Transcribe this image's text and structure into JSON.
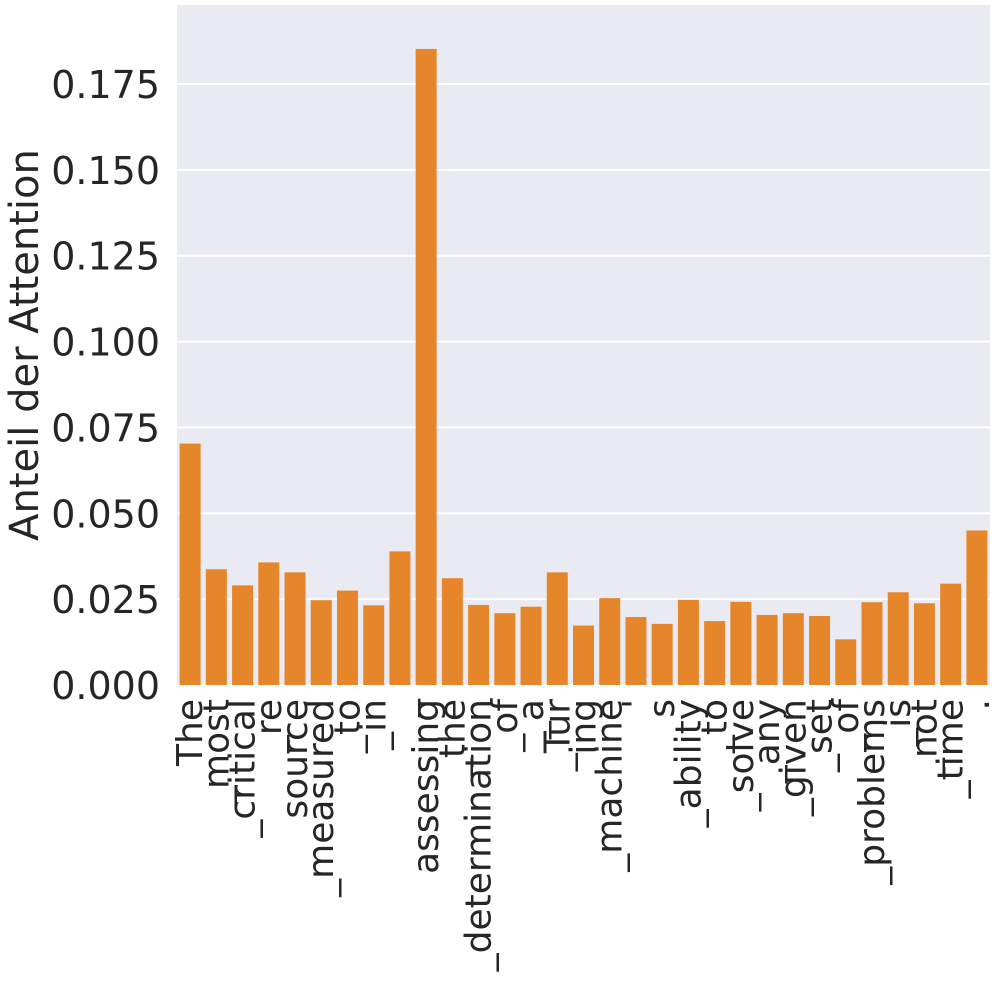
{
  "chart_data": {
    "type": "bar",
    "title": "",
    "xlabel": "",
    "ylabel": "Anteil der Attention",
    "ylim": [
      0,
      0.198
    ],
    "yticks": [
      "0.000",
      "0.025",
      "0.050",
      "0.075",
      "0.100",
      "0.125",
      "0.150",
      "0.175"
    ],
    "grid": true,
    "bar_color": "#E6862A",
    "background_color": "#EAEAF2",
    "categories": [
      "The",
      "_most",
      "_critical",
      "_re",
      "source",
      "_measured",
      "_to",
      "_in",
      "_",
      "assessing",
      "_the",
      "_determination",
      "_of",
      "_a",
      "_Tur",
      "ing",
      "_machine",
      "'",
      "s",
      "_ability",
      "_to",
      "_solve",
      "_any",
      "_given",
      "_set",
      "_of",
      "_problems",
      "_is",
      "_not",
      "_time",
      "."
    ],
    "values": [
      0.0703,
      0.0337,
      0.029,
      0.0357,
      0.0328,
      0.0247,
      0.0275,
      0.0232,
      0.0389,
      0.1852,
      0.0311,
      0.0233,
      0.0209,
      0.0228,
      0.0328,
      0.0173,
      0.0253,
      0.0198,
      0.0178,
      0.0248,
      0.0186,
      0.0242,
      0.0204,
      0.0209,
      0.0201,
      0.0133,
      0.0241,
      0.027,
      0.0238,
      0.0295,
      0.045
    ]
  }
}
